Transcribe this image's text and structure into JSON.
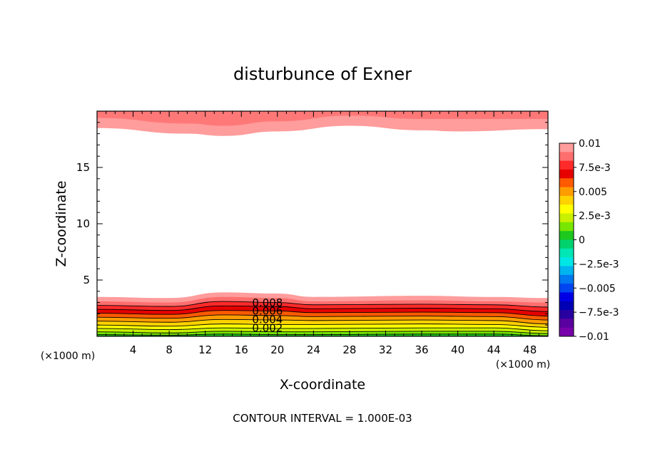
{
  "chart_data": {
    "type": "heatmap",
    "title": "disturbunce of Exner",
    "xlabel": "X-coordinate",
    "ylabel": "Z-coordinate",
    "x_unit": "(×1000 m)",
    "y_unit": "(×1000 m)",
    "xlim": [
      0,
      50
    ],
    "ylim": [
      0,
      20
    ],
    "x_ticks": [
      4,
      8,
      12,
      16,
      20,
      24,
      28,
      32,
      36,
      40,
      44,
      48
    ],
    "y_ticks": [
      5,
      10,
      15
    ],
    "footer": "CONTOUR INTERVAL = 1.000E-03",
    "colorbar": {
      "labels": [
        "0.01",
        "7.5e-3",
        "0.005",
        "2.5e-3",
        "0",
        "−2.5e-3",
        "−0.005",
        "−7.5e-3",
        "−0.01"
      ],
      "levels": [
        {
          "value": 0.009,
          "color": "#ff9c9c"
        },
        {
          "value": 0.008,
          "color": "#ff6e6e"
        },
        {
          "value": 0.007,
          "color": "#ff2a2a"
        },
        {
          "value": 0.006,
          "color": "#e60000"
        },
        {
          "value": 0.005,
          "color": "#ff5a00"
        },
        {
          "value": 0.004,
          "color": "#ff9c00"
        },
        {
          "value": 0.003,
          "color": "#ffd200"
        },
        {
          "value": 0.002,
          "color": "#ffff00"
        },
        {
          "value": 0.001,
          "color": "#c8f000"
        },
        {
          "value": 0.0005,
          "color": "#78e600"
        },
        {
          "value": 0.0,
          "color": "#1ec81e"
        },
        {
          "value": -0.0005,
          "color": "#00d26e"
        },
        {
          "value": -0.001,
          "color": "#00e6b4"
        },
        {
          "value": -0.002,
          "color": "#00e6e6"
        },
        {
          "value": -0.003,
          "color": "#00b4f0"
        },
        {
          "value": -0.004,
          "color": "#0078f0"
        },
        {
          "value": -0.005,
          "color": "#0046f0"
        },
        {
          "value": -0.006,
          "color": "#0000e6"
        },
        {
          "value": -0.007,
          "color": "#0000b4"
        },
        {
          "value": -0.008,
          "color": "#2800a0"
        },
        {
          "value": -0.009,
          "color": "#5a00a0"
        },
        {
          "value": -0.01,
          "color": "#7800aa"
        }
      ]
    },
    "contour_labels": [
      "0.008",
      "0.006",
      "0.004",
      "0.002"
    ],
    "top_band": {
      "outer_color": "#ff9c9c",
      "inner_color": "#ff7878",
      "outer_bottom": [
        [
          0,
          18.5
        ],
        [
          10,
          18.0
        ],
        [
          14,
          17.8
        ],
        [
          20,
          18.2
        ],
        [
          28,
          18.7
        ],
        [
          36,
          18.3
        ],
        [
          40,
          18.2
        ],
        [
          50,
          18.4
        ]
      ],
      "inner_bottom": [
        [
          0,
          19.4
        ],
        [
          10,
          18.9
        ],
        [
          14,
          18.7
        ],
        [
          20,
          19.1
        ],
        [
          28,
          19.6
        ],
        [
          36,
          19.3
        ],
        [
          50,
          19.3
        ]
      ]
    },
    "bottom_layers": [
      {
        "color": "#ff9c9c",
        "top": [
          [
            0,
            3.5
          ],
          [
            8,
            3.4
          ],
          [
            14,
            3.9
          ],
          [
            20,
            3.8
          ],
          [
            24,
            3.5
          ],
          [
            36,
            3.6
          ],
          [
            44,
            3.5
          ],
          [
            50,
            3.4
          ]
        ]
      },
      {
        "color": "#ff6e6e",
        "top": [
          [
            0,
            3.1
          ],
          [
            8,
            3.0
          ],
          [
            14,
            3.5
          ],
          [
            20,
            3.4
          ],
          [
            24,
            3.1
          ],
          [
            36,
            3.2
          ],
          [
            44,
            3.1
          ],
          [
            50,
            3.0
          ]
        ]
      },
      {
        "color": "#ff2a2a",
        "top": [
          [
            0,
            2.75
          ],
          [
            8,
            2.65
          ],
          [
            14,
            3.1
          ],
          [
            20,
            3.0
          ],
          [
            24,
            2.8
          ],
          [
            36,
            2.85
          ],
          [
            44,
            2.8
          ],
          [
            50,
            2.6
          ]
        ]
      },
      {
        "color": "#e60000",
        "top": [
          [
            0,
            2.4
          ],
          [
            8,
            2.3
          ],
          [
            14,
            2.7
          ],
          [
            20,
            2.65
          ],
          [
            24,
            2.45
          ],
          [
            36,
            2.5
          ],
          [
            44,
            2.45
          ],
          [
            50,
            2.2
          ]
        ]
      },
      {
        "color": "#ff5a00",
        "top": [
          [
            0,
            2.05
          ],
          [
            8,
            1.95
          ],
          [
            14,
            2.3
          ],
          [
            20,
            2.25
          ],
          [
            24,
            2.1
          ],
          [
            36,
            2.15
          ],
          [
            44,
            2.1
          ],
          [
            50,
            1.8
          ]
        ]
      },
      {
        "color": "#ff9c00",
        "top": [
          [
            0,
            1.7
          ],
          [
            8,
            1.6
          ],
          [
            14,
            1.9
          ],
          [
            20,
            1.85
          ],
          [
            24,
            1.75
          ],
          [
            36,
            1.8
          ],
          [
            44,
            1.75
          ],
          [
            50,
            1.45
          ]
        ]
      },
      {
        "color": "#ffd200",
        "top": [
          [
            0,
            1.35
          ],
          [
            8,
            1.25
          ],
          [
            14,
            1.5
          ],
          [
            20,
            1.45
          ],
          [
            24,
            1.4
          ],
          [
            36,
            1.45
          ],
          [
            44,
            1.4
          ],
          [
            50,
            1.1
          ]
        ]
      },
      {
        "color": "#ffff00",
        "top": [
          [
            0,
            1.0
          ],
          [
            8,
            0.9
          ],
          [
            14,
            1.1
          ],
          [
            20,
            1.05
          ],
          [
            24,
            1.05
          ],
          [
            36,
            1.1
          ],
          [
            44,
            1.05
          ],
          [
            50,
            0.8
          ]
        ]
      },
      {
        "color": "#c8f000",
        "top": [
          [
            0,
            0.7
          ],
          [
            8,
            0.6
          ],
          [
            14,
            0.75
          ],
          [
            20,
            0.7
          ],
          [
            24,
            0.7
          ],
          [
            36,
            0.75
          ],
          [
            44,
            0.75
          ],
          [
            50,
            0.5
          ]
        ]
      },
      {
        "color": "#78e600",
        "top": [
          [
            0,
            0.4
          ],
          [
            8,
            0.3
          ],
          [
            14,
            0.45
          ],
          [
            20,
            0.4
          ],
          [
            24,
            0.4
          ],
          [
            36,
            0.45
          ],
          [
            44,
            0.45
          ],
          [
            50,
            0.25
          ]
        ]
      },
      {
        "color": "#1ec81e",
        "top": [
          [
            0,
            0.15
          ],
          [
            8,
            0.1
          ],
          [
            14,
            0.2
          ],
          [
            20,
            0.15
          ],
          [
            24,
            0.15
          ],
          [
            36,
            0.2
          ],
          [
            44,
            0.2
          ],
          [
            50,
            0.05
          ]
        ]
      }
    ]
  }
}
